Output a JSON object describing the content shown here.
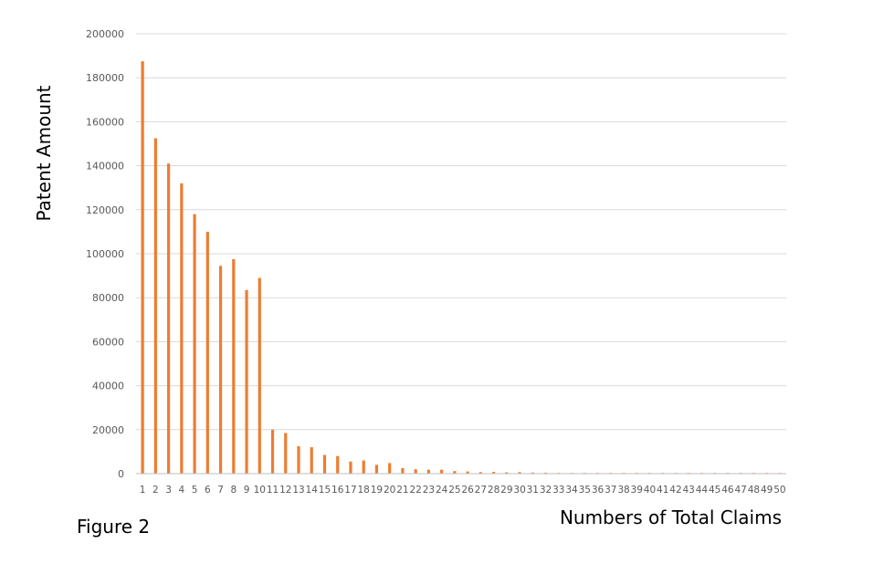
{
  "caption": "Figure 2",
  "colors": {
    "bar": "#ED7D31",
    "grid": "#D9D9D9",
    "axis": "#BFBFBF",
    "tick_text": "#595959"
  },
  "chart_data": {
    "type": "bar",
    "xlabel": "Numbers of Total Claims",
    "ylabel": "Patent Amount",
    "ylim": [
      0,
      200000
    ],
    "yticks": [
      0,
      20000,
      40000,
      60000,
      80000,
      100000,
      120000,
      140000,
      160000,
      180000,
      200000
    ],
    "grid": "horizontal",
    "legend": "none",
    "categories": [
      "1",
      "2",
      "3",
      "4",
      "5",
      "6",
      "7",
      "8",
      "9",
      "10",
      "11",
      "12",
      "13",
      "14",
      "15",
      "16",
      "17",
      "18",
      "19",
      "20",
      "21",
      "22",
      "23",
      "24",
      "25",
      "26",
      "27",
      "28",
      "29",
      "30",
      "31",
      "32",
      "33",
      "34",
      "35",
      "36",
      "37",
      "38",
      "39",
      "40",
      "41",
      "42",
      "43",
      "44",
      "45",
      "46",
      "47",
      "48",
      "49",
      "50"
    ],
    "values": [
      187500,
      152500,
      141000,
      132000,
      118000,
      110000,
      94500,
      97500,
      83500,
      89000,
      20000,
      18500,
      12500,
      12000,
      8500,
      8000,
      5500,
      6000,
      4000,
      4800,
      2500,
      2000,
      1800,
      1800,
      1200,
      1000,
      700,
      800,
      600,
      700,
      500,
      400,
      300,
      300,
      300,
      250,
      200,
      200,
      200,
      200,
      150,
      150,
      150,
      150,
      150,
      100,
      100,
      100,
      100,
      100
    ]
  }
}
